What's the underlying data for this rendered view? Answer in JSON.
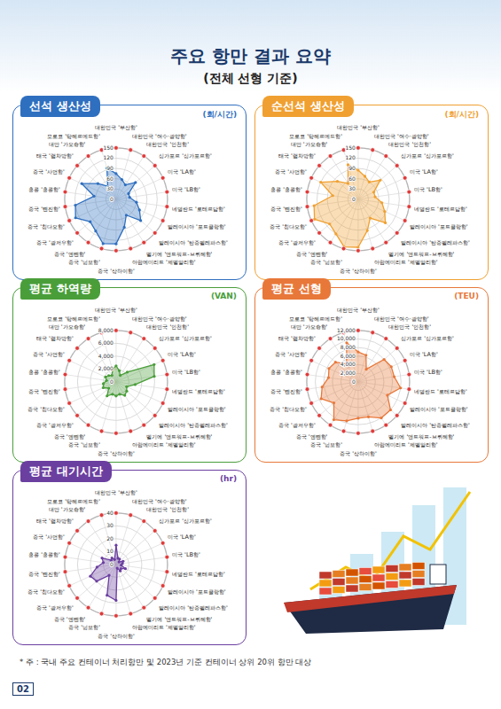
{
  "header": {
    "title": "주요 항만 결과 요약",
    "subtitle": "(전체 선형 기준)"
  },
  "footnote": "* 주 : 국내 주요 컨테이너 처리항만 및 2023년 기준 컨테이너 상위 20위 항만 대상",
  "page_number": "02",
  "chart_data": [
    {
      "type": "radar",
      "title": "선석 생산성",
      "ylabel": "(회/시간)",
      "color": "#2f6fbf",
      "categories": [
        "대한민국 '부산항'",
        "대한민국 '여수·광양항'",
        "대한민국 '인천항'",
        "싱가포르 '싱가포르항'",
        "미국 'LA항'",
        "미국 'LB항'",
        "네덜란드 '로테르담항'",
        "말레이시아 '포트클랑항'",
        "말레이시아 '탄중펠레파스항'",
        "벨기에 '앤트워프-브뤼헤항'",
        "아랍에미리트 '제벨알리항'",
        "중국 '상하이항'",
        "중국 '닝보항'",
        "중국 '옌톈항'",
        "중국 '광저우항'",
        "중국 '칭다오항'",
        "중국 '톈진항'",
        "홍콩 '홍콩항'",
        "중국 '샤먼항'",
        "태국 '램차방항'",
        "대만 '가오슝항'",
        "모로코 '탕헤르메드항'"
      ],
      "values": [
        75,
        60,
        50,
        75,
        40,
        40,
        60,
        75,
        95,
        55,
        85,
        130,
        135,
        110,
        100,
        130,
        120,
        65,
        110,
        70,
        45,
        95
      ],
      "ylim": [
        0,
        150
      ],
      "yticks": [
        0,
        30,
        60,
        90,
        120,
        150
      ],
      "grid": true
    },
    {
      "type": "radar",
      "title": "순선석 생산성",
      "ylabel": "(회/시간)",
      "color": "#f0a030",
      "categories": [
        "대한민국 '부산항'",
        "대한민국 '여수·광양항'",
        "대한민국 '인천항'",
        "싱가포르 '싱가포르항'",
        "미국 'LA항'",
        "미국 'LB항'",
        "네덜란드 '로테르담항'",
        "말레이시아 '포트클랑항'",
        "말레이시아 '탄중펠레파스항'",
        "벨기에 '앤트워프-브뤼헤항'",
        "아랍에미리트 '제벨알리항'",
        "중국 '상하이항'",
        "중국 '닝보항'",
        "중국 '옌톈항'",
        "중국 '광저우항'",
        "중국 '칭다오항'",
        "중국 '톈진항'",
        "홍콩 '홍콩항'",
        "중국 '샤먼항'",
        "태국 '램차방항'",
        "대만 '가오슝항'",
        "모로코 '탕헤르메드항'"
      ],
      "values": [
        85,
        70,
        60,
        85,
        50,
        50,
        70,
        85,
        105,
        65,
        95,
        140,
        145,
        120,
        110,
        140,
        130,
        75,
        120,
        80,
        55,
        105
      ],
      "ylim": [
        0,
        150
      ],
      "yticks": [
        0,
        30,
        60,
        90,
        120,
        150
      ],
      "grid": true
    },
    {
      "type": "radar",
      "title": "평균 하역량",
      "ylabel": "(VAN)",
      "color": "#4a9e3a",
      "categories": [
        "대한민국 '부산항'",
        "대한민국 '여수·광양항'",
        "대한민국 '인천항'",
        "싱가포르 '싱가포르항'",
        "미국 'LA항'",
        "미국 'LB항'",
        "네덜란드 '로테르담항'",
        "말레이시아 '포트클랑항'",
        "말레이시아 '탄중펠레파스항'",
        "벨기에 '앤트워프-브뤼헤항'",
        "아랍에미리트 '제벨알리항'",
        "중국 '상하이항'",
        "중국 '닝보항'",
        "중국 '옌톈항'",
        "중국 '광저우항'",
        "중국 '칭다오항'",
        "중국 '톈진항'",
        "홍콩 '홍콩항'",
        "중국 '샤먼항'",
        "태국 '램차방항'",
        "대만 '가오슝항'",
        "모로코 '탕헤르메드항'"
      ],
      "values": [
        2500,
        1800,
        1200,
        2300,
        6500,
        6000,
        3000,
        1800,
        2200,
        2500,
        2000,
        2200,
        2000,
        2600,
        1500,
        2200,
        2000,
        1500,
        1800,
        1500,
        1200,
        2000
      ],
      "ylim": [
        0,
        8000
      ],
      "yticks": [
        0,
        {
          "value": 2000,
          "label": "2,000"
        },
        {
          "value": 4000,
          "label": "4,000"
        },
        {
          "value": 6000,
          "label": "6,000"
        },
        {
          "value": 8000,
          "label": "8,000"
        }
      ],
      "grid": true
    },
    {
      "type": "radar",
      "title": "평균 선형",
      "ylabel": "(TEU)",
      "color": "#e8783a",
      "categories": [
        "대한민국 '부산항'",
        "대한민국 '여수·광양항'",
        "대한민국 '인천항'",
        "싱가포르 '싱가포르항'",
        "미국 'LA항'",
        "미국 'LB항'",
        "네덜란드 '로테르담항'",
        "말레이시아 '포트클랑항'",
        "말레이시아 '탄중펠레파스항'",
        "벨기에 '앤트워프-브뤼헤항'",
        "아랍에미리트 '제벨알리항'",
        "중국 '상하이항'",
        "중국 '닝보항'",
        "중국 '옌톈항'",
        "중국 '광저우항'",
        "중국 '칭다오항'",
        "중국 '톈진항'",
        "홍콩 '홍콩항'",
        "중국 '샤먼항'",
        "태국 '램차방항'",
        "대만 '가오슝항'",
        "모로코 '탕헤르메드항'"
      ],
      "values": [
        7000,
        6500,
        3500,
        8000,
        8500,
        8500,
        10000,
        7500,
        10000,
        10000,
        8500,
        8500,
        9500,
        10500,
        7500,
        9500,
        8500,
        7000,
        7500,
        7000,
        5000,
        9500
      ],
      "ylim": [
        0,
        12000
      ],
      "yticks": [
        0,
        {
          "value": 2000,
          "label": "2,000"
        },
        {
          "value": 4000,
          "label": "4,000"
        },
        {
          "value": 6000,
          "label": "6,000"
        },
        {
          "value": 8000,
          "label": "8,000"
        },
        {
          "value": 10000,
          "label": "10,000"
        },
        {
          "value": 12000,
          "label": "12,000"
        }
      ],
      "grid": true
    },
    {
      "type": "radar",
      "title": "평균 대기시간",
      "ylabel": "(hr)",
      "color": "#6b3fa0",
      "categories": [
        "대한민국 '부산항'",
        "대한민국 '여수·광양항'",
        "대한민국 '인천항'",
        "싱가포르 '싱가포르항'",
        "미국 'LA항'",
        "미국 'LB항'",
        "네덜란드 '로테르담항'",
        "말레이시아 '포트클랑항'",
        "말레이시아 '탄중펠레파스항'",
        "벨기에 '앤트워프-브뤼헤항'",
        "아랍에미리트 '제벨알리항'",
        "중국 '상하이항'",
        "중국 '닝보항'",
        "중국 '옌톈항'",
        "중국 '광저우항'",
        "중국 '칭다오항'",
        "중국 '톈진항'",
        "홍콩 '홍콩항'",
        "중국 '샤먼항'",
        "태국 '램차방항'",
        "대만 '가오슝항'",
        "모로코 '탕헤르메드항'"
      ],
      "values": [
        15,
        5,
        5,
        3,
        6,
        5,
        4,
        8,
        5,
        6,
        3,
        28,
        25,
        10,
        20,
        22,
        15,
        10,
        12,
        5,
        6,
        4
      ],
      "ylim": [
        0,
        40
      ],
      "yticks": [
        0,
        10,
        20,
        30,
        40
      ],
      "grid": true
    }
  ]
}
